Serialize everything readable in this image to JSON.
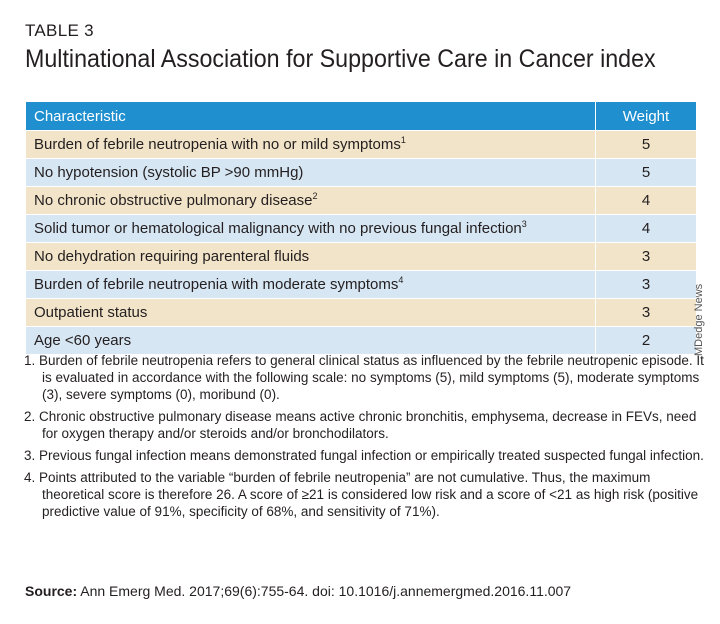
{
  "label": "TABLE 3",
  "title": "Multinational Association for Supportive Care in Cancer index",
  "table": {
    "headers": {
      "characteristic": "Characteristic",
      "weight": "Weight"
    },
    "rows": [
      {
        "characteristic": "Burden of febrile neutropenia with no or mild symptoms",
        "sup": "1",
        "weight": "5"
      },
      {
        "characteristic": "No hypotension (systolic BP >90 mmHg)",
        "sup": "",
        "weight": "5"
      },
      {
        "characteristic": "No chronic obstructive pulmonary disease",
        "sup": "2",
        "weight": "4"
      },
      {
        "characteristic": "Solid tumor or hematological malignancy with no previous fungal infection",
        "sup": "3",
        "weight": "4"
      },
      {
        "characteristic": "No dehydration requiring parenteral fluids",
        "sup": "",
        "weight": "3"
      },
      {
        "characteristic": "Burden of febrile neutropenia with moderate symptoms",
        "sup": "4",
        "weight": "3"
      },
      {
        "characteristic": "Outpatient status",
        "sup": "",
        "weight": "3"
      },
      {
        "characteristic": "Age <60 years",
        "sup": "",
        "weight": "2"
      }
    ]
  },
  "credit": "MDedge News",
  "notes": [
    "1. Burden of febrile neutropenia refers to general clinical status as influenced by the febrile neutropenic episode. It is evaluated in accordance with the following scale: no symptoms (5), mild symptoms (5), moderate symptoms (3), severe symptoms (0), moribund (0).",
    "2. Chronic obstructive pulmonary disease means active chronic bronchitis, emphysema, decrease in FEVs, need for oxygen therapy and/or steroids and/or bronchodilators.",
    "3. Previous fungal infection means demonstrated fungal infection or empirically treated suspected fungal infection.",
    "4. Points attributed to the variable “burden of febrile neutropenia” are not cumulative. Thus, the maximum theoretical score is therefore 26. A score of ≥21 is considered low risk and a score of <21 as high risk (positive predictive value of 91%, specificity of 68%, and sensitivity of 71%)."
  ],
  "source": {
    "label": "Source:",
    "text": " Ann Emerg Med. 2017;69(6):755-64. doi: 10.1016/j.annemergmed.2016.11.007"
  }
}
